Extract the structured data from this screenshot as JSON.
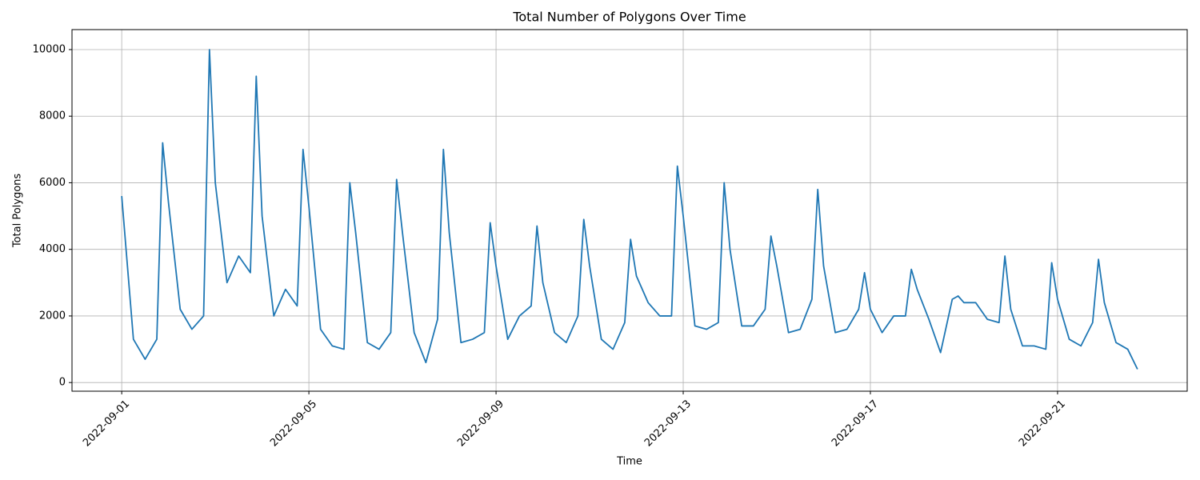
{
  "chart_data": {
    "type": "line",
    "title": "Total Number of Polygons Over Time",
    "x_label": "Time",
    "y_label": "Total Polygons",
    "x": [
      "2022-09-01T00:00",
      "2022-09-01T06:00",
      "2022-09-01T12:00",
      "2022-09-01T18:00",
      "2022-09-01T21:00",
      "2022-09-02T00:00",
      "2022-09-02T06:00",
      "2022-09-02T12:00",
      "2022-09-02T18:00",
      "2022-09-02T21:00",
      "2022-09-03T00:00",
      "2022-09-03T06:00",
      "2022-09-03T12:00",
      "2022-09-03T18:00",
      "2022-09-03T21:00",
      "2022-09-04T00:00",
      "2022-09-04T06:00",
      "2022-09-04T12:00",
      "2022-09-04T18:00",
      "2022-09-04T21:00",
      "2022-09-05T00:00",
      "2022-09-05T06:00",
      "2022-09-05T12:00",
      "2022-09-05T18:00",
      "2022-09-05T21:00",
      "2022-09-06T00:00",
      "2022-09-06T06:00",
      "2022-09-06T12:00",
      "2022-09-06T18:00",
      "2022-09-06T21:00",
      "2022-09-07T00:00",
      "2022-09-07T06:00",
      "2022-09-07T12:00",
      "2022-09-07T18:00",
      "2022-09-07T21:00",
      "2022-09-08T00:00",
      "2022-09-08T06:00",
      "2022-09-08T12:00",
      "2022-09-08T18:00",
      "2022-09-08T21:00",
      "2022-09-09T00:00",
      "2022-09-09T06:00",
      "2022-09-09T12:00",
      "2022-09-09T18:00",
      "2022-09-09T21:00",
      "2022-09-10T00:00",
      "2022-09-10T06:00",
      "2022-09-10T12:00",
      "2022-09-10T18:00",
      "2022-09-10T21:00",
      "2022-09-11T00:00",
      "2022-09-11T06:00",
      "2022-09-11T12:00",
      "2022-09-11T18:00",
      "2022-09-11T21:00",
      "2022-09-12T00:00",
      "2022-09-12T06:00",
      "2022-09-12T12:00",
      "2022-09-12T18:00",
      "2022-09-12T21:00",
      "2022-09-13T00:00",
      "2022-09-13T06:00",
      "2022-09-13T12:00",
      "2022-09-13T18:00",
      "2022-09-13T21:00",
      "2022-09-14T00:00",
      "2022-09-14T06:00",
      "2022-09-14T12:00",
      "2022-09-14T18:00",
      "2022-09-14T21:00",
      "2022-09-15T00:00",
      "2022-09-15T06:00",
      "2022-09-15T12:00",
      "2022-09-15T18:00",
      "2022-09-15T21:00",
      "2022-09-16T00:00",
      "2022-09-16T06:00",
      "2022-09-16T12:00",
      "2022-09-16T18:00",
      "2022-09-16T21:00",
      "2022-09-17T00:00",
      "2022-09-17T06:00",
      "2022-09-17T12:00",
      "2022-09-17T18:00",
      "2022-09-17T21:00",
      "2022-09-18T00:00",
      "2022-09-18T06:00",
      "2022-09-18T12:00",
      "2022-09-18T18:00",
      "2022-09-18T21:00",
      "2022-09-19T00:00",
      "2022-09-19T06:00",
      "2022-09-19T12:00",
      "2022-09-19T18:00",
      "2022-09-19T21:00",
      "2022-09-20T00:00",
      "2022-09-20T06:00",
      "2022-09-20T12:00",
      "2022-09-20T18:00",
      "2022-09-20T21:00",
      "2022-09-21T00:00",
      "2022-09-21T06:00",
      "2022-09-21T12:00",
      "2022-09-21T18:00",
      "2022-09-21T21:00",
      "2022-09-22T00:00",
      "2022-09-22T06:00",
      "2022-09-22T12:00",
      "2022-09-22T17:00"
    ],
    "series": [
      {
        "name": "Total Polygons",
        "color": "#1f77b4",
        "values": [
          5600,
          1300,
          700,
          1300,
          7200,
          5400,
          2200,
          1600,
          2000,
          10000,
          6000,
          3000,
          3800,
          3300,
          9200,
          5000,
          2000,
          2800,
          2300,
          7000,
          5300,
          1600,
          1100,
          1000,
          6000,
          4500,
          1200,
          1000,
          1500,
          6100,
          4500,
          1500,
          600,
          1900,
          7000,
          4500,
          1200,
          1300,
          1500,
          4800,
          3500,
          1300,
          2000,
          2300,
          4700,
          3000,
          1500,
          1200,
          2000,
          4900,
          3500,
          1300,
          1000,
          1800,
          4300,
          3200,
          2400,
          2000,
          2000,
          6500,
          5000,
          1700,
          1600,
          1800,
          6000,
          4000,
          1700,
          1700,
          2200,
          4400,
          3500,
          1500,
          1600,
          2500,
          5800,
          3500,
          1500,
          1600,
          2200,
          3300,
          2200,
          1500,
          2000,
          2000,
          3400,
          2800,
          1900,
          900,
          2500,
          2600,
          2400,
          2400,
          1900,
          1800,
          3800,
          2200,
          1100,
          1100,
          1000,
          3600,
          2500,
          1300,
          1100,
          1800,
          3700,
          2400,
          1200,
          1000,
          400
        ]
      }
    ],
    "xlim": [
      "2022-08-30T22:30",
      "2022-09-23T18:30"
    ],
    "xticks": [
      "2022-09-01",
      "2022-09-05",
      "2022-09-09",
      "2022-09-13",
      "2022-09-17",
      "2022-09-21"
    ],
    "ylim": [
      -260,
      10600
    ],
    "yticks": [
      0,
      2000,
      4000,
      6000,
      8000,
      10000
    ],
    "grid": true
  }
}
